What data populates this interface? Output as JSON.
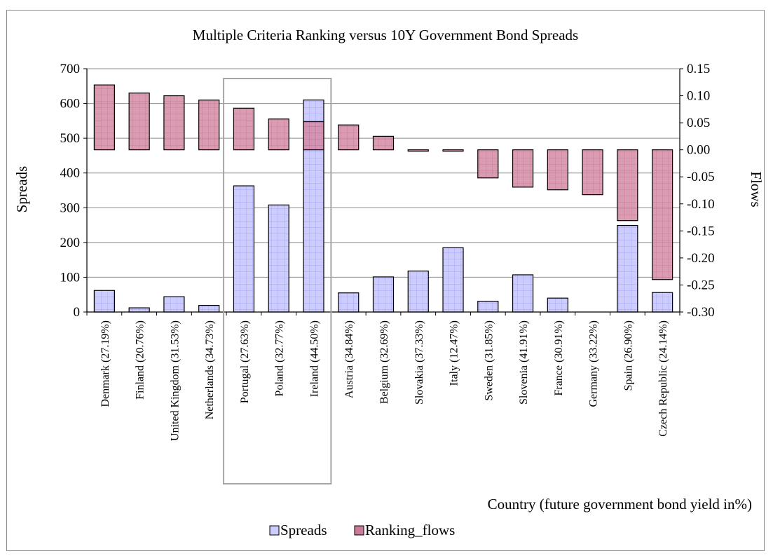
{
  "chart_data": {
    "type": "bar",
    "title": "Multiple Criteria Ranking versus 10Y Government Bond Spreads",
    "xlabel": "Country (future government bond yield in%)",
    "ylabel": "Spreads",
    "y2label": "Flows",
    "ylim": [
      0,
      700
    ],
    "y2lim": [
      -0.3,
      0.15
    ],
    "yticks": [
      "0",
      "100",
      "200",
      "300",
      "400",
      "500",
      "600",
      "700"
    ],
    "y2ticks": [
      "0.15",
      "0.10",
      "0.05",
      "0.00",
      "-0.05",
      "-0.10",
      "-0.15",
      "-0.20",
      "-0.25",
      "-0.30"
    ],
    "categories": [
      "Denmark (27.19%)",
      "Finland (20.76%)",
      "United Kingdom (31.53%)",
      "Netherlands (34.73%)",
      "Portugal (27.63%)",
      "Poland (32.77%)",
      "Ireland (44.50%)",
      "Austria (34.84%)",
      "Belgium (32.69%)",
      "Slovakia (37.33%)",
      "Italy (12.47%)",
      "Sweden (31.85%)",
      "Slovenia (41.91%)",
      "France (30.91%)",
      "Germany (33.22%)",
      "Spain (26.90%)",
      "Czech Republic (24.14%)"
    ],
    "series": [
      {
        "name": "Spreads",
        "axis": "left",
        "color": "#ccccff",
        "values": [
          62,
          12,
          44,
          19,
          363,
          308,
          610,
          55,
          101,
          118,
          185,
          31,
          107,
          40,
          0,
          249,
          56
        ]
      },
      {
        "name": "Ranking_flows",
        "axis": "right",
        "color": "#cc7a9a",
        "values": [
          0.12,
          0.105,
          0.1,
          0.092,
          0.077,
          0.057,
          0.052,
          0.046,
          0.025,
          0.0,
          -0.001,
          -0.052,
          -0.069,
          -0.074,
          -0.083,
          -0.131,
          -0.24
        ]
      }
    ],
    "highlight": {
      "from": "Portugal (27.63%)",
      "to": "Ireland (44.50%)"
    },
    "legend_position": "bottom"
  }
}
